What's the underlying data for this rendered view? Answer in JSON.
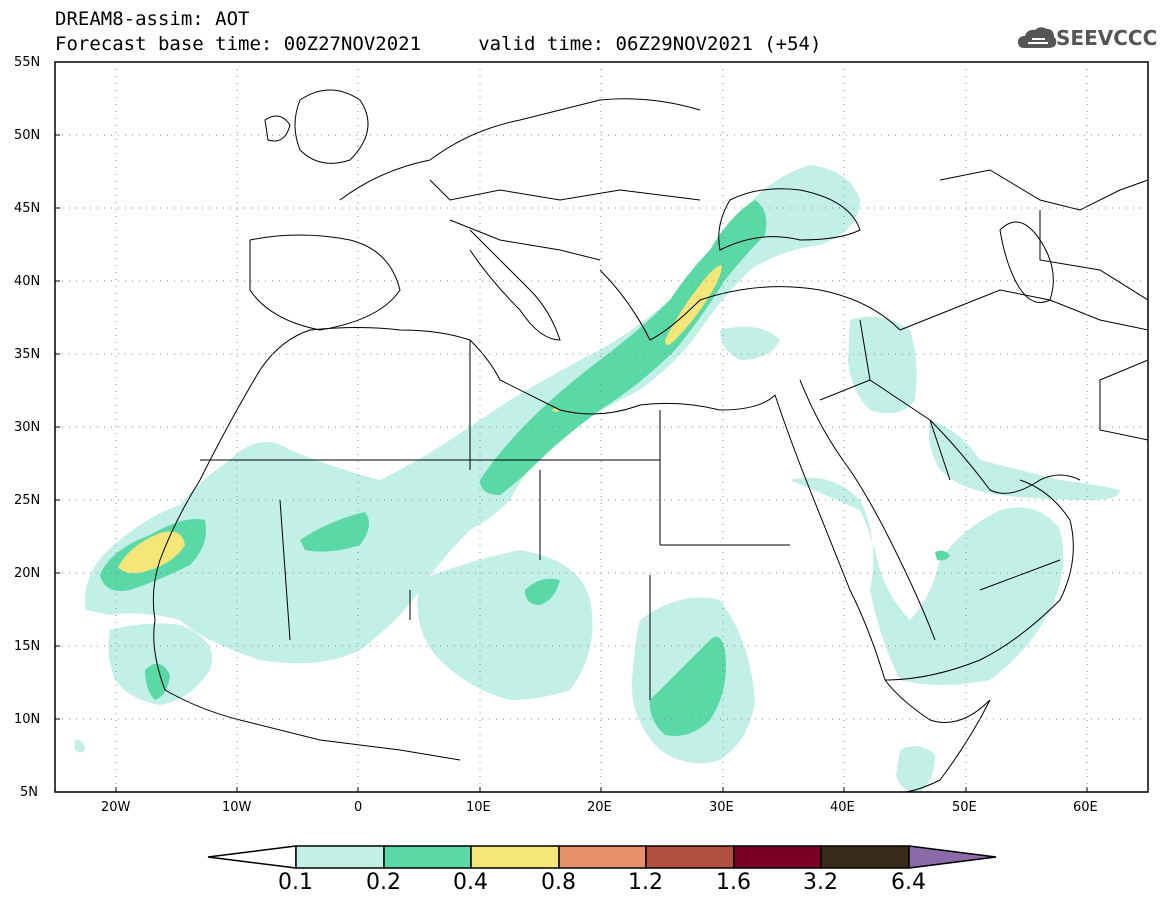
{
  "title": {
    "line1": "DREAM8-assim: AOT",
    "line2": "Forecast base time: 00Z27NOV2021     valid time: 06Z29NOV2021 (+54)"
  },
  "logo": {
    "text": "SEEVCCC",
    "icon": "cloud-icon"
  },
  "map": {
    "lon_range": [
      -25,
      65
    ],
    "lat_range": [
      5,
      55
    ],
    "lat_ticks": [
      "55N",
      "50N",
      "45N",
      "40N",
      "35N",
      "30N",
      "25N",
      "20N",
      "15N",
      "10N",
      "5N"
    ],
    "lon_ticks": [
      "20W",
      "10W",
      "0",
      "10E",
      "20E",
      "30E",
      "40E",
      "50E",
      "60E"
    ]
  },
  "colorbar": {
    "labels": [
      "0.1",
      "0.2",
      "0.4",
      "0.8",
      "1.2",
      "1.6",
      "3.2",
      "6.4"
    ],
    "colors": [
      "#c2f0e6",
      "#5ad8a6",
      "#f5e67a",
      "#e8906a",
      "#b05040",
      "#7a0026",
      "#3a2a1a",
      "#8a6aa8"
    ]
  }
}
